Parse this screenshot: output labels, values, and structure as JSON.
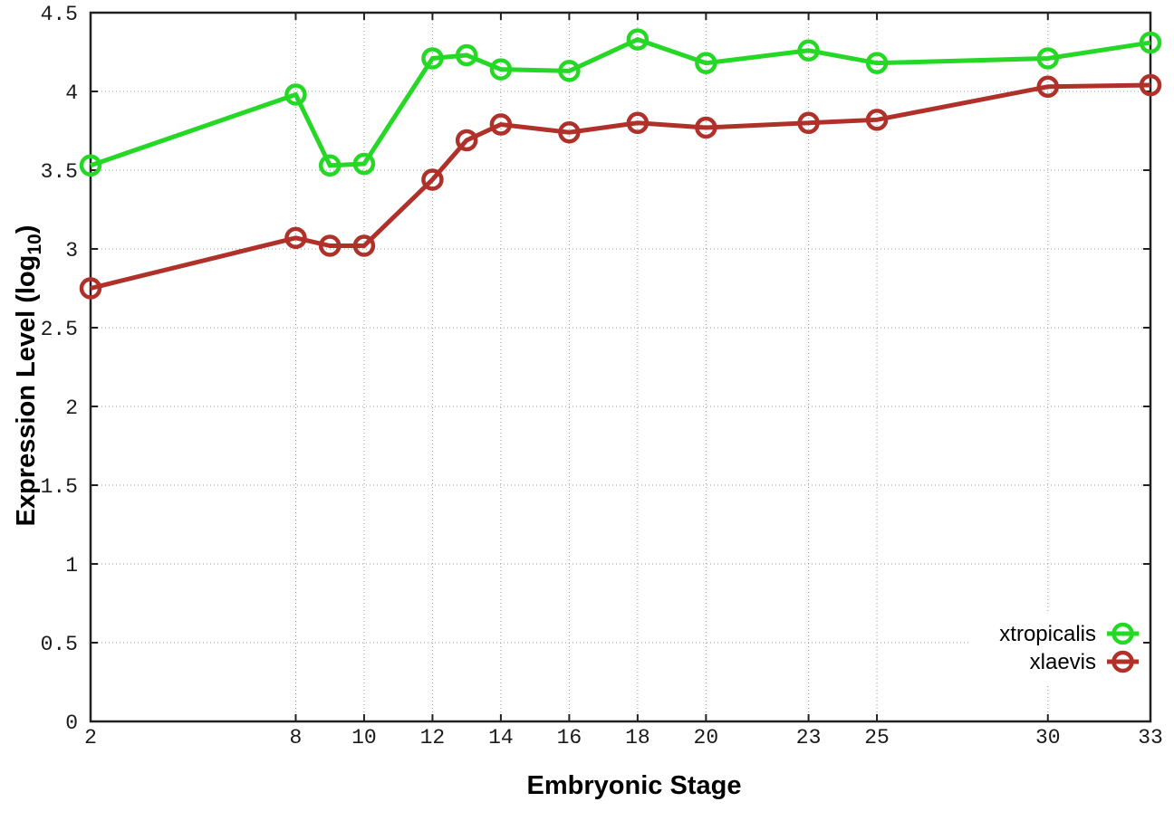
{
  "chart_data": {
    "type": "line",
    "title": "",
    "xlabel": "Embryonic Stage",
    "ylabel": "Expression Level (log10)",
    "ylabel_parts": {
      "prefix": "Expression Level (log",
      "sub": "10",
      "suffix": ")"
    },
    "x": [
      2,
      8,
      9,
      10,
      12,
      13,
      14,
      16,
      18,
      20,
      23,
      25,
      30,
      33
    ],
    "xticks": [
      2,
      8,
      10,
      12,
      14,
      16,
      18,
      20,
      23,
      25,
      30,
      33
    ],
    "yticks": [
      0,
      0.5,
      1,
      1.5,
      2,
      2.5,
      3,
      3.5,
      4,
      4.5
    ],
    "xlim": [
      2,
      33
    ],
    "ylim": [
      0,
      4.5
    ],
    "grid": true,
    "legend_position": "inside-bottom-right",
    "series": [
      {
        "name": "xtropicalis",
        "color": "#26d826",
        "marker": "open-circle",
        "values": [
          3.53,
          3.98,
          3.53,
          3.54,
          4.21,
          4.23,
          4.14,
          4.13,
          4.33,
          4.18,
          4.26,
          4.18,
          4.21,
          4.31
        ]
      },
      {
        "name": "xlaevis",
        "color": "#b0302a",
        "marker": "open-circle",
        "values": [
          2.75,
          3.07,
          3.02,
          3.02,
          3.44,
          3.69,
          3.79,
          3.74,
          3.8,
          3.77,
          3.8,
          3.82,
          4.03,
          4.04
        ]
      }
    ],
    "style": {
      "border_color": "#212121",
      "grid_color": "#999999",
      "tick_text_color": "#1a1a1a",
      "background": "#ffffff"
    }
  }
}
